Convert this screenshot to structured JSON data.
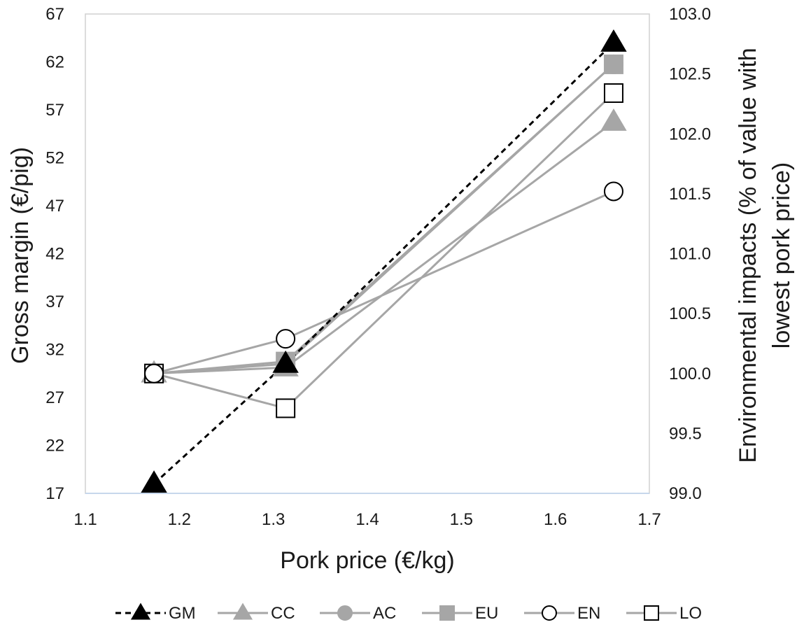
{
  "chart_data": {
    "type": "line",
    "xlabel": "Pork price (€/kg)",
    "ylabel_left": "Gross margin (€/pig)",
    "ylabel_right_lines": [
      "Environmental impacts (% of value with",
      "lowest pork price)"
    ],
    "xlim": [
      1.1,
      1.7
    ],
    "ylim_left": [
      17,
      67
    ],
    "ylim_right": [
      99.0,
      103.0
    ],
    "x_ticks": [
      "1.1",
      "1.2",
      "1.3",
      "1.4",
      "1.5",
      "1.6",
      "1.7"
    ],
    "y_left_ticks": [
      "17",
      "22",
      "27",
      "32",
      "37",
      "42",
      "47",
      "52",
      "57",
      "62",
      "67"
    ],
    "y_right_ticks": [
      "99.0",
      "99.5",
      "100.0",
      "100.5",
      "101.0",
      "101.5",
      "102.0",
      "102.5",
      "103.0"
    ],
    "grid": false,
    "legend_position": "bottom",
    "series": [
      {
        "name": "GM",
        "axis": "left",
        "x": [
          1.173,
          1.313,
          1.662
        ],
        "values": [
          18.0,
          30.5,
          64.0
        ],
        "color": "#000000",
        "dashed": true,
        "marker": "triangle",
        "filled": true
      },
      {
        "name": "CC",
        "axis": "right",
        "x": [
          1.173,
          1.313,
          1.662
        ],
        "values": [
          100.0,
          100.05,
          102.1
        ],
        "color": "#a6a6a6",
        "dashed": false,
        "marker": "triangle",
        "filled": true
      },
      {
        "name": "AC",
        "axis": "right",
        "x": [
          1.173,
          1.313,
          1.662
        ],
        "values": [
          100.0,
          100.08,
          102.58
        ],
        "color": "#a6a6a6",
        "dashed": false,
        "marker": "circle",
        "filled": true
      },
      {
        "name": "EU",
        "axis": "right",
        "x": [
          1.173,
          1.313,
          1.662
        ],
        "values": [
          100.0,
          100.1,
          102.58
        ],
        "color": "#a6a6a6",
        "dashed": false,
        "marker": "square",
        "filled": true
      },
      {
        "name": "EN",
        "axis": "right",
        "x": [
          1.173,
          1.313,
          1.662
        ],
        "values": [
          100.0,
          100.29,
          101.52
        ],
        "color": "#a6a6a6",
        "dashed": false,
        "marker": "circle",
        "filled": false
      },
      {
        "name": "LO",
        "axis": "right",
        "x": [
          1.173,
          1.313,
          1.662
        ],
        "values": [
          100.0,
          99.71,
          102.34
        ],
        "color": "#a6a6a6",
        "dashed": false,
        "marker": "square",
        "filled": false
      }
    ]
  }
}
